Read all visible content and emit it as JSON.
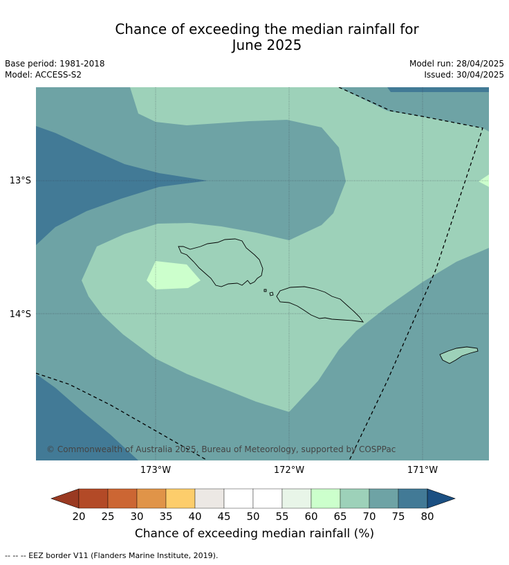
{
  "title": {
    "line1": "Chance of exceeding the median rainfall for",
    "line2": "June 2025"
  },
  "meta": {
    "base_period": "Base period: 1981-2018",
    "model": "Model: ACCESS-S2",
    "model_run": "Model run: 28/04/2025",
    "issued": "Issued: 30/04/2025"
  },
  "map": {
    "lat_ticks": [
      "13°S",
      "14°S"
    ],
    "lon_ticks": [
      "173°W",
      "172°W",
      "171°W"
    ],
    "copyright": "© Commonwealth of Australia 2025, Bureau of Meteorology, supported by COSPPac"
  },
  "colorbar": {
    "ticks": [
      "20",
      "25",
      "30",
      "35",
      "40",
      "45",
      "50",
      "55",
      "60",
      "65",
      "70",
      "75",
      "80"
    ],
    "colors": [
      "#9a3a22",
      "#b34a27",
      "#cc6633",
      "#e09448",
      "#fdcd6b",
      "#ece8e4",
      "#ffffff",
      "#ffffff",
      "#e8f5e8",
      "#ccffcc",
      "#9dd1b9",
      "#6ea3a5",
      "#427a96",
      "#1b4f82"
    ],
    "label": "Chance of exceeding median rainfall (%)"
  },
  "footer": "--  --  -- EEZ border V11 (Flanders Marine Institute, 2019)."
}
